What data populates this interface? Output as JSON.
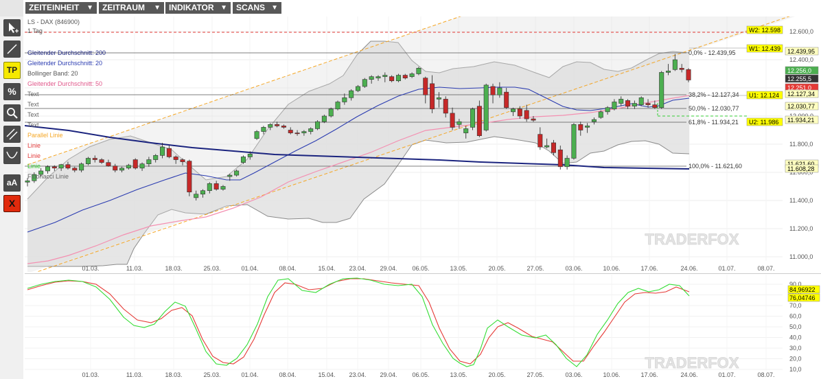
{
  "menu": [
    {
      "label": "ZEITEINHEIT"
    },
    {
      "label": "ZEITRAUM"
    },
    {
      "label": "INDIKATOR"
    },
    {
      "label": "SCANS"
    }
  ],
  "menu_caret": "▼",
  "tools": [
    {
      "name": "cursor-tool-icon",
      "glyph": ""
    },
    {
      "name": "line-tool-icon",
      "glyph": ""
    },
    {
      "name": "tp-tool-button",
      "glyph": "TP"
    },
    {
      "name": "percent-tool-icon",
      "glyph": "%"
    },
    {
      "name": "zoom-tool-icon",
      "glyph": ""
    },
    {
      "name": "parallel-tool-icon",
      "glyph": ""
    },
    {
      "name": "curve-tool-icon",
      "glyph": ""
    },
    {
      "name": "text-tool-button",
      "glyph": "aA"
    },
    {
      "name": "delete-tool-button",
      "glyph": "X"
    }
  ],
  "legend": [
    {
      "text": "LS - DAX (846900)",
      "color": "#555555"
    },
    {
      "text": "1 Tag",
      "color": "#555555"
    },
    {
      "text": "Gleitender Durchschnitt: 200",
      "color": "#1a237e"
    },
    {
      "text": "Gleitender Durchschnitt: 20",
      "color": "#2a3bb0"
    },
    {
      "text": "Bollinger Band: 20",
      "color": "#555555"
    },
    {
      "text": "Gleitender Durchschnitt: 50",
      "color": "#e0578a"
    },
    {
      "text": "Text",
      "color": "#666666"
    },
    {
      "text": "Text",
      "color": "#666666"
    },
    {
      "text": "Text",
      "color": "#666666"
    },
    {
      "text": "Text",
      "color": "#666666"
    },
    {
      "text": "Parallel Linie",
      "color": "#f5a623"
    },
    {
      "text": "Linie",
      "color": "#e23b3b"
    },
    {
      "text": "Linie",
      "color": "#e23b3b"
    },
    {
      "text": "Linie",
      "color": "#33cc33"
    },
    {
      "text": "Fibonacci Linie",
      "color": "#666666"
    }
  ],
  "price_axis_ticks": [
    "12.600,0",
    "12.400,0",
    "12.200,0",
    "12.000,0",
    "11.800,0",
    "11.600,0",
    "11.400,0",
    "11.200,0",
    "11.000,0"
  ],
  "date_ticks": [
    "01.03.",
    "11.03.",
    "18.03.",
    "25.03.",
    "01.04.",
    "08.04.",
    "15.04.",
    "23.04.",
    "29.04.",
    "06.05.",
    "13.05.",
    "20.05.",
    "27.05.",
    "03.06.",
    "10.06.",
    "17.06.",
    "24.06.",
    "01.07.",
    "08.07."
  ],
  "fib_labels": [
    "0,0% - 12.439,95",
    "38,2% - 12.127,34",
    "50,0% - 12.030,77",
    "61,8% - 11.934,21",
    "100,0% - 11.621,60"
  ],
  "price_tags": [
    {
      "text": "W2: 12.598",
      "bg": "#ffff00",
      "fg": "#000000"
    },
    {
      "text": "W1: 12.439",
      "bg": "#ffff00",
      "fg": "#000000"
    },
    {
      "text": "12.439,95",
      "bg": "#ffffc0",
      "fg": "#000000"
    },
    {
      "text": "12.256,0",
      "bg": "#4caf50",
      "fg": "#ffffff"
    },
    {
      "text": "12.255,5",
      "bg": "#333333",
      "fg": "#ffffff"
    },
    {
      "text": "12.251,0",
      "bg": "#e53935",
      "fg": "#ffffff"
    },
    {
      "text": "U1: 12.124",
      "bg": "#ffff00",
      "fg": "#000000"
    },
    {
      "text": "12.127,34",
      "bg": "#ffffc0",
      "fg": "#000000"
    },
    {
      "text": "12.030,77",
      "bg": "#ffffc0",
      "fg": "#000000"
    },
    {
      "text": "U2: 11.986",
      "bg": "#ffff00",
      "fg": "#000000"
    },
    {
      "text": "11.934,21",
      "bg": "#ffffc0",
      "fg": "#000000"
    },
    {
      "text": "11.621,60",
      "bg": "#ffffc0",
      "fg": "#000000"
    },
    {
      "text": "11.608,28",
      "bg": "#ffffc0",
      "fg": "#000000"
    }
  ],
  "stoch_ticks": [
    "90,0",
    "80,0",
    "70,0",
    "60,0",
    "50,0",
    "40,0",
    "30,0",
    "20,0",
    "10,0"
  ],
  "stoch_tags": [
    {
      "text": "84,96922",
      "bg": "#ffff00",
      "fg": "#000000"
    },
    {
      "text": "76,04746",
      "bg": "#ffff00",
      "fg": "#000000"
    }
  ],
  "watermark": "TRADERFOX",
  "colors": {
    "bull": "#4caf50",
    "bear": "#c62828",
    "ma200": "#1a237e",
    "ma20": "#2a3bb0",
    "ma50": "#f48fb1",
    "parallel": "#f5a623",
    "resistance": "#e53935",
    "support": "#33cc33",
    "stoch_k": "#33dd33",
    "stoch_d": "#e53935"
  },
  "candles": [
    {
      "date": "26.02.",
      "o": 11530,
      "h": 11560,
      "l": 11500,
      "c": 11540
    },
    {
      "date": "27.02.",
      "o": 11540,
      "h": 11600,
      "l": 11525,
      "c": 11585
    },
    {
      "date": "28.02.",
      "o": 11585,
      "h": 11630,
      "l": 11570,
      "c": 11610
    },
    {
      "date": "01.03.",
      "o": 11610,
      "h": 11650,
      "l": 11590,
      "c": 11640
    },
    {
      "date": "04.03.",
      "o": 11640,
      "h": 11650,
      "l": 11610,
      "c": 11630
    },
    {
      "date": "05.03.",
      "o": 11630,
      "h": 11660,
      "l": 11610,
      "c": 11655
    },
    {
      "date": "06.03.",
      "o": 11655,
      "h": 11675,
      "l": 11620,
      "c": 11630
    },
    {
      "date": "07.03.",
      "o": 11630,
      "h": 11640,
      "l": 11600,
      "c": 11615
    },
    {
      "date": "08.03.",
      "o": 11615,
      "h": 11670,
      "l": 11600,
      "c": 11660
    },
    {
      "date": "11.03.",
      "o": 11660,
      "h": 11710,
      "l": 11650,
      "c": 11700
    },
    {
      "date": "12.03.",
      "o": 11700,
      "h": 11720,
      "l": 11670,
      "c": 11690
    },
    {
      "date": "13.03.",
      "o": 11690,
      "h": 11700,
      "l": 11660,
      "c": 11670
    },
    {
      "date": "14.03.",
      "o": 11670,
      "h": 11690,
      "l": 11640,
      "c": 11645
    },
    {
      "date": "15.03.",
      "o": 11645,
      "h": 11660,
      "l": 11600,
      "c": 11615
    },
    {
      "date": "18.03.",
      "o": 11615,
      "h": 11640,
      "l": 11600,
      "c": 11630
    },
    {
      "date": "19.03.",
      "o": 11630,
      "h": 11660,
      "l": 11620,
      "c": 11650
    },
    {
      "date": "20.03.",
      "o": 11690,
      "h": 11700,
      "l": 11620,
      "c": 11630
    },
    {
      "date": "21.03.",
      "o": 11630,
      "h": 11670,
      "l": 11610,
      "c": 11660
    },
    {
      "date": "22.03.",
      "o": 11660,
      "h": 11710,
      "l": 11640,
      "c": 11690
    },
    {
      "date": "25.03.",
      "o": 11690,
      "h": 11730,
      "l": 11670,
      "c": 11720
    },
    {
      "date": "26.03.",
      "o": 11720,
      "h": 11810,
      "l": 11700,
      "c": 11780
    },
    {
      "date": "27.03.",
      "o": 11770,
      "h": 11790,
      "l": 11700,
      "c": 11710
    },
    {
      "date": "28.03.",
      "o": 11710,
      "h": 11720,
      "l": 11660,
      "c": 11690
    },
    {
      "date": "29.03.",
      "o": 11690,
      "h": 11700,
      "l": 11650,
      "c": 11675
    },
    {
      "date": "01.04.",
      "o": 11680,
      "h": 11690,
      "l": 11430,
      "c": 11460
    },
    {
      "date": "02.04.",
      "o": 11420,
      "h": 11470,
      "l": 11400,
      "c": 11445
    },
    {
      "date": "03.04.",
      "o": 11445,
      "h": 11480,
      "l": 11420,
      "c": 11470
    },
    {
      "date": "04.04.",
      "o": 11470,
      "h": 11530,
      "l": 11450,
      "c": 11520
    },
    {
      "date": "05.04.",
      "o": 11520,
      "h": 11540,
      "l": 11470,
      "c": 11480
    },
    {
      "date": "08.04.",
      "o": 11480,
      "h": 11510,
      "l": 11470,
      "c": 11500
    },
    {
      "date": "09.04.",
      "o": 11570,
      "h": 11590,
      "l": 11540,
      "c": 11580
    },
    {
      "date": "10.04.",
      "o": 11580,
      "h": 11620,
      "l": 11570,
      "c": 11610
    },
    {
      "date": "11.04.",
      "o": 11670,
      "h": 11720,
      "l": 11660,
      "c": 11710
    },
    {
      "date": "12.04.",
      "o": 11710,
      "h": 11750,
      "l": 11690,
      "c": 11730
    },
    {
      "date": "15.04.",
      "o": 11840,
      "h": 11900,
      "l": 11830,
      "c": 11890
    },
    {
      "date": "16.04.",
      "o": 11890,
      "h": 11930,
      "l": 11870,
      "c": 11920
    },
    {
      "date": "17.04.",
      "o": 11920,
      "h": 11950,
      "l": 11900,
      "c": 11940
    },
    {
      "date": "18.04.",
      "o": 11940,
      "h": 11960,
      "l": 11920,
      "c": 11930
    },
    {
      "date": "22.04.",
      "o": 11930,
      "h": 11940,
      "l": 11910,
      "c": 11920
    },
    {
      "date": "23.04.",
      "o": 11900,
      "h": 11920,
      "l": 11870,
      "c": 11880
    },
    {
      "date": "24.04.",
      "o": 11880,
      "h": 11900,
      "l": 11860,
      "c": 11875
    },
    {
      "date": "25.04.",
      "o": 11880,
      "h": 11900,
      "l": 11860,
      "c": 11890
    },
    {
      "date": "26.04.",
      "o": 11890,
      "h": 11920,
      "l": 11870,
      "c": 11910
    },
    {
      "date": "29.04.",
      "o": 11910,
      "h": 11970,
      "l": 11900,
      "c": 11960
    },
    {
      "date": "30.04.",
      "o": 11960,
      "h": 12010,
      "l": 11950,
      "c": 12000
    },
    {
      "date": "02.05.",
      "o": 12000,
      "h": 12060,
      "l": 11990,
      "c": 12050
    },
    {
      "date": "03.05.",
      "o": 12050,
      "h": 12110,
      "l": 12040,
      "c": 12100
    },
    {
      "date": "06.05.",
      "o": 12100,
      "h": 12160,
      "l": 12080,
      "c": 12130
    },
    {
      "date": "07.05.",
      "o": 12130,
      "h": 12190,
      "l": 12110,
      "c": 12180
    },
    {
      "date": "08.05.",
      "o": 12180,
      "h": 12220,
      "l": 12170,
      "c": 12210
    },
    {
      "date": "09.05.",
      "o": 12210,
      "h": 12270,
      "l": 12200,
      "c": 12260
    },
    {
      "date": "10.05.",
      "o": 12260,
      "h": 12290,
      "l": 12230,
      "c": 12280
    },
    {
      "date": "13.05.",
      "o": 12270,
      "h": 12290,
      "l": 12250,
      "c": 12280
    },
    {
      "date": "14.05.",
      "o": 12280,
      "h": 12310,
      "l": 12240,
      "c": 12290
    },
    {
      "date": "15.05.",
      "o": 12280,
      "h": 12290,
      "l": 12240,
      "c": 12250
    },
    {
      "date": "16.05.",
      "o": 12250,
      "h": 12300,
      "l": 12240,
      "c": 12290
    },
    {
      "date": "17.05.",
      "o": 12290,
      "h": 12300,
      "l": 12260,
      "c": 12270
    },
    {
      "date": "20.05.",
      "o": 12280,
      "h": 12310,
      "l": 12270,
      "c": 12300
    },
    {
      "date": "21.05.",
      "o": 12300,
      "h": 12350,
      "l": 12290,
      "c": 12340
    },
    {
      "date": "22.05.",
      "o": 12270,
      "h": 12280,
      "l": 12090,
      "c": 12150
    },
    {
      "date": "23.05.",
      "o": 12230,
      "h": 12290,
      "l": 12020,
      "c": 12050
    },
    {
      "date": "24.05.",
      "o": 12120,
      "h": 12170,
      "l": 12060,
      "c": 12130
    },
    {
      "date": "27.05.",
      "o": 12120,
      "h": 12140,
      "l": 11990,
      "c": 12020
    },
    {
      "date": "28.05.",
      "o": 12020,
      "h": 12060,
      "l": 11900,
      "c": 11920
    },
    {
      "date": "29.05.",
      "o": 11940,
      "h": 11980,
      "l": 11910,
      "c": 11960
    },
    {
      "date": "30.05.",
      "o": 11880,
      "h": 11930,
      "l": 11840,
      "c": 11910
    },
    {
      "date": "31.05.",
      "o": 11920,
      "h": 12060,
      "l": 11900,
      "c": 12050
    },
    {
      "date": "03.06.",
      "o": 12070,
      "h": 12110,
      "l": 11850,
      "c": 11860
    },
    {
      "date": "04.06.",
      "o": 11900,
      "h": 12230,
      "l": 11890,
      "c": 12220
    },
    {
      "date": "05.06.",
      "o": 12210,
      "h": 12230,
      "l": 12090,
      "c": 12150
    },
    {
      "date": "06.06.",
      "o": 12150,
      "h": 12240,
      "l": 12130,
      "c": 12200
    },
    {
      "date": "07.06.",
      "o": 12170,
      "h": 12200,
      "l": 12050,
      "c": 12060
    },
    {
      "date": "10.06.",
      "o": 12030,
      "h": 12060,
      "l": 12000,
      "c": 12050
    },
    {
      "date": "11.06.",
      "o": 12050,
      "h": 12070,
      "l": 11980,
      "c": 12000
    },
    {
      "date": "12.06.",
      "o": 12040,
      "h": 12080,
      "l": 11960,
      "c": 11980
    },
    {
      "date": "13.06.",
      "o": 11980,
      "h": 12000,
      "l": 11960,
      "c": 11970
    },
    {
      "date": "14.06.",
      "o": 11870,
      "h": 11920,
      "l": 11760,
      "c": 11780
    },
    {
      "date": "17.06.",
      "o": 11780,
      "h": 11840,
      "l": 11770,
      "c": 11790
    },
    {
      "date": "18.06.",
      "o": 11810,
      "h": 11830,
      "l": 11720,
      "c": 11740
    },
    {
      "date": "19.06.",
      "o": 11760,
      "h": 11790,
      "l": 11620,
      "c": 11640
    },
    {
      "date": "20.06.",
      "o": 11640,
      "h": 11720,
      "l": 11620,
      "c": 11700
    },
    {
      "date": "21.06.",
      "o": 11700,
      "h": 11950,
      "l": 11690,
      "c": 11940
    },
    {
      "date": "24.06.",
      "o": 11940,
      "h": 11960,
      "l": 11860,
      "c": 11900
    },
    {
      "date": "25.06.",
      "o": 11920,
      "h": 11950,
      "l": 11880,
      "c": 11930
    },
    {
      "date": "26.06.",
      "o": 11960,
      "h": 11990,
      "l": 11940,
      "c": 11975
    },
    {
      "date": "27.06.",
      "o": 11990,
      "h": 12040,
      "l": 11980,
      "c": 12030
    },
    {
      "date": "28.06.",
      "o": 12030,
      "h": 12070,
      "l": 12010,
      "c": 12060
    },
    {
      "date": "01.07.",
      "o": 12050,
      "h": 12120,
      "l": 12040,
      "c": 12100
    },
    {
      "date": "02.07.",
      "o": 12090,
      "h": 12140,
      "l": 12070,
      "c": 12120
    },
    {
      "date": "03.07.",
      "o": 12110,
      "h": 12120,
      "l": 12050,
      "c": 12070
    },
    {
      "date": "04.07.",
      "o": 12070,
      "h": 12110,
      "l": 12050,
      "c": 12090
    },
    {
      "date": "05.07.",
      "o": 12080,
      "h": 12140,
      "l": 12070,
      "c": 12130
    },
    {
      "date": "08.07.",
      "o": 12090,
      "h": 12120,
      "l": 12060,
      "c": 12080
    },
    {
      "date": "09.07.",
      "o": 12080,
      "h": 12110,
      "l": 12050,
      "c": 12060
    },
    {
      "date": "10.07.",
      "o": 12060,
      "h": 12320,
      "l": 12050,
      "c": 12310
    },
    {
      "date": "11.07.",
      "o": 12310,
      "h": 12370,
      "l": 12290,
      "c": 12320
    },
    {
      "date": "12.07.",
      "o": 12330,
      "h": 12440,
      "l": 12320,
      "c": 12400
    },
    {
      "date": "15.07.",
      "o": 12340,
      "h": 12370,
      "l": 12310,
      "c": 12330
    },
    {
      "date": "16.07.",
      "o": 12330,
      "h": 12340,
      "l": 12240,
      "c": 12256
    }
  ]
}
